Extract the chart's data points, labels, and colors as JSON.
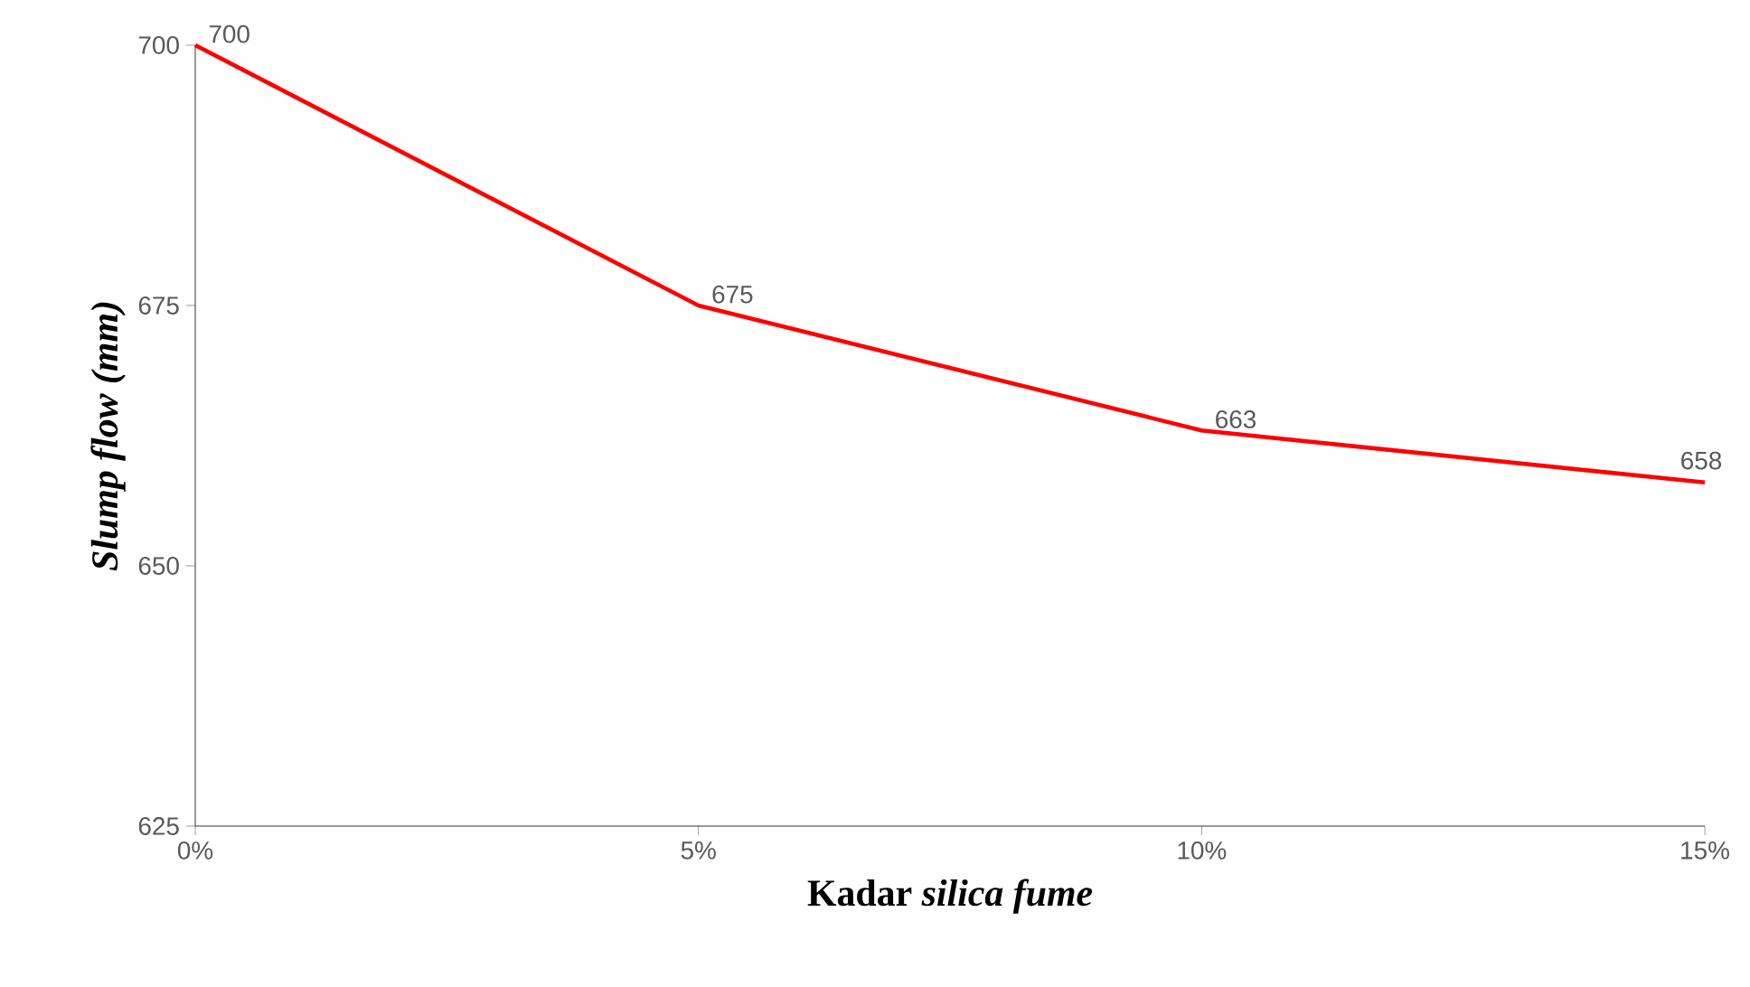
{
  "chart_data": {
    "type": "line",
    "xlabel": "Kadar *silica fume*",
    "ylabel": "Slump flow (mm)",
    "categories": [
      "0%",
      "5%",
      "10%",
      "15%"
    ],
    "series": [
      {
        "color": "#ff0000",
        "values": [
          700,
          675,
          663,
          658
        ]
      }
    ],
    "ylim": [
      625,
      700
    ],
    "yticks": [
      625,
      650,
      675,
      700
    ],
    "data_labels": true,
    "grid": false
  }
}
